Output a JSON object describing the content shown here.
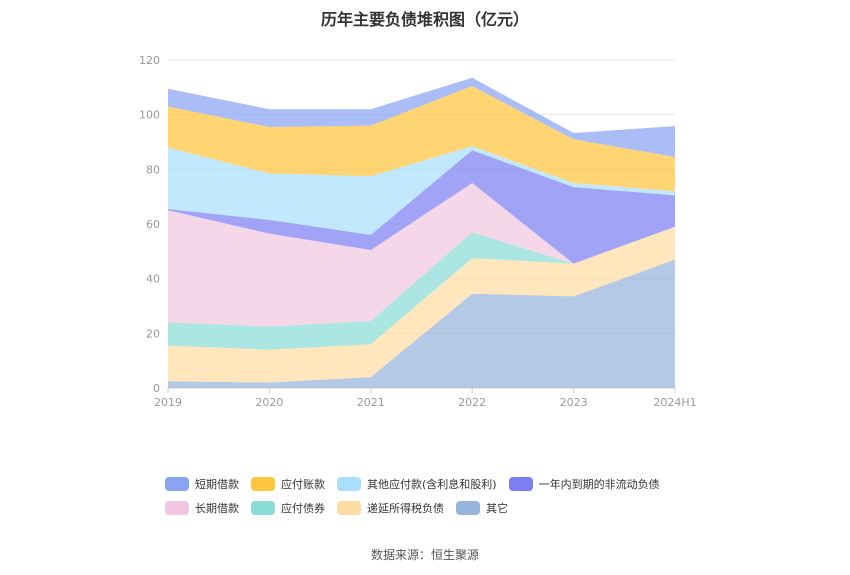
{
  "chart_data": {
    "type": "area",
    "title": "历年主要负债堆积图（亿元）",
    "categories": [
      "2019",
      "2020",
      "2021",
      "2022",
      "2023",
      "2024H1"
    ],
    "ylim": [
      0,
      120
    ],
    "yticks": [
      0,
      20,
      40,
      60,
      80,
      100,
      120
    ],
    "grid": true,
    "legend_position": "bottom",
    "stack_order": [
      "其它",
      "递延所得税负债",
      "应付债券",
      "长期借款",
      "一年内到期的非流动负债",
      "其他应付款(含利息和股利)",
      "应付账款",
      "短期借款"
    ],
    "series": [
      {
        "name": "短期借款",
        "color": "#8aa4f2",
        "values": [
          6.5,
          6.5,
          6.0,
          3.0,
          2.3,
          11.3
        ]
      },
      {
        "name": "应付账款",
        "color": "#ffc53d",
        "values": [
          15.0,
          17.0,
          18.5,
          22.0,
          16.0,
          12.5
        ]
      },
      {
        "name": "其他应付款(含利息和股利)",
        "color": "#a9dffb",
        "values": [
          22.5,
          17.0,
          21.5,
          1.5,
          1.5,
          1.5
        ]
      },
      {
        "name": "一年内到期的非流动负债",
        "color": "#7b7ff2",
        "values": [
          0.5,
          5.0,
          5.5,
          12.0,
          28.0,
          11.5
        ]
      },
      {
        "name": "长期借款",
        "color": "#f2c6e0",
        "values": [
          41.0,
          34.0,
          26.0,
          18.0,
          0.0,
          0.0
        ]
      },
      {
        "name": "应付债券",
        "color": "#8adcd8",
        "values": [
          8.5,
          8.5,
          8.5,
          9.5,
          0.0,
          0.0
        ]
      },
      {
        "name": "递延所得税负债",
        "color": "#ffdca3",
        "values": [
          13.0,
          12.0,
          12.0,
          13.0,
          12.0,
          12.0
        ]
      },
      {
        "name": "其它",
        "color": "#97b4dc",
        "values": [
          2.5,
          2.0,
          4.0,
          34.5,
          33.5,
          47.0
        ]
      }
    ]
  },
  "legend_rows": [
    [
      "短期借款",
      "应付账款",
      "其他应付款(含利息和股利)",
      "一年内到期的非流动负债"
    ],
    [
      "长期借款",
      "应付债券",
      "递延所得税负债",
      "其它"
    ]
  ],
  "source": "数据来源：恒生聚源"
}
